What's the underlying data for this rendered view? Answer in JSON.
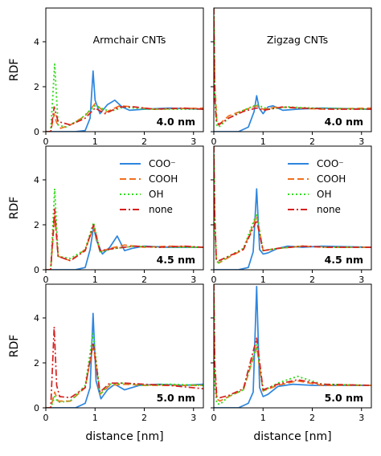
{
  "series_styles": [
    {
      "name": "COO⁻",
      "color": "#2e86de",
      "dash": "",
      "width": 1.7
    },
    {
      "name": "COOH",
      "color": "#f0701d",
      "dash": "8,4",
      "width": 1.7
    },
    {
      "name": "OH",
      "color": "#33dd1a",
      "dash": "2,3",
      "width": 1.9
    },
    {
      "name": "none",
      "color": "#d62020",
      "dash": "8,3,2,3",
      "width": 1.7
    }
  ],
  "chart_data": [
    {
      "type": "line",
      "row": 0,
      "col": 0,
      "title": "Armchair CNTs",
      "panel_label": "4.0 nm",
      "xlabel": "",
      "ylabel": "RDF",
      "xlim": [
        0,
        3.2
      ],
      "ylim": [
        0,
        5.5
      ],
      "xticks": [
        "0",
        "1",
        "2",
        "3"
      ],
      "yticks": [
        "0",
        "2",
        "4"
      ],
      "legend": false,
      "series": [
        {
          "name": "COO⁻",
          "x": [
            0,
            0.6,
            0.8,
            0.9,
            0.96,
            1.0,
            1.1,
            1.25,
            1.4,
            1.55,
            1.7,
            2.0,
            2.5,
            3.2
          ],
          "y": [
            0,
            0,
            0.05,
            0.6,
            2.7,
            1.4,
            0.8,
            1.2,
            1.4,
            1.1,
            0.95,
            1.0,
            1.05,
            1.0
          ]
        },
        {
          "name": "COOH",
          "x": [
            0,
            0.1,
            0.17,
            0.22,
            0.3,
            0.5,
            0.8,
            1.0,
            1.2,
            1.5,
            1.8,
            2.2,
            3.2
          ],
          "y": [
            0,
            0,
            0.8,
            0.4,
            0.15,
            0.3,
            0.7,
            1.25,
            0.85,
            1.15,
            1.1,
            1.0,
            1.05
          ]
        },
        {
          "name": "OH",
          "x": [
            0,
            0.1,
            0.18,
            0.25,
            0.4,
            0.7,
            1.0,
            1.3,
            1.6,
            2.0,
            3.2
          ],
          "y": [
            0,
            0,
            3.0,
            0.3,
            0.2,
            0.55,
            1.15,
            0.9,
            1.1,
            1.0,
            1.0
          ]
        },
        {
          "name": "none",
          "x": [
            0,
            0.1,
            0.17,
            0.25,
            0.5,
            0.8,
            1.0,
            1.2,
            1.5,
            1.8,
            2.2,
            2.8,
            3.2
          ],
          "y": [
            0,
            0,
            1.1,
            0.45,
            0.3,
            0.6,
            1.05,
            0.8,
            1.1,
            1.1,
            1.0,
            1.05,
            1.0
          ]
        }
      ]
    },
    {
      "type": "line",
      "row": 0,
      "col": 1,
      "title": "Zigzag CNTs",
      "panel_label": "4.0 nm",
      "xlabel": "",
      "ylabel": "",
      "xlim": [
        0,
        3.2
      ],
      "ylim": [
        0,
        5.5
      ],
      "xticks": [
        "0",
        "1",
        "2",
        "3"
      ],
      "yticks": [
        "0",
        "2",
        "4"
      ],
      "legend": false,
      "series": [
        {
          "name": "COO⁻",
          "x": [
            0,
            0.5,
            0.7,
            0.82,
            0.87,
            0.92,
            1.0,
            1.1,
            1.2,
            1.4,
            1.7,
            2.2,
            3.2
          ],
          "y": [
            0,
            0,
            0.2,
            0.9,
            1.6,
            1.05,
            0.8,
            1.1,
            1.15,
            0.95,
            1.0,
            1.05,
            1.0
          ]
        },
        {
          "name": "COOH",
          "x": [
            0,
            0.02,
            0.06,
            0.12,
            0.3,
            0.6,
            0.87,
            1.0,
            1.3,
            1.7,
            2.2,
            3.2
          ],
          "y": [
            5.5,
            2.2,
            0.5,
            0.35,
            0.7,
            0.95,
            1.15,
            1.0,
            1.1,
            1.05,
            1.0,
            1.05
          ]
        },
        {
          "name": "OH",
          "x": [
            0,
            0.02,
            0.06,
            0.1,
            0.3,
            0.6,
            0.87,
            1.1,
            1.5,
            2.0,
            3.2
          ],
          "y": [
            5.5,
            1.8,
            0.3,
            0.2,
            0.6,
            0.95,
            1.2,
            1.0,
            1.1,
            1.05,
            1.0
          ]
        },
        {
          "name": "none",
          "x": [
            0,
            0.02,
            0.05,
            0.1,
            0.3,
            0.6,
            0.87,
            1.0,
            1.4,
            1.8,
            2.4,
            3.2
          ],
          "y": [
            5.5,
            1.5,
            0.5,
            0.3,
            0.6,
            0.9,
            1.05,
            0.95,
            1.1,
            1.05,
            1.0,
            1.0
          ]
        }
      ]
    },
    {
      "type": "line",
      "row": 1,
      "col": 0,
      "title": "",
      "panel_label": "4.5 nm",
      "xlabel": "",
      "ylabel": "RDF",
      "xlim": [
        0,
        3.2
      ],
      "ylim": [
        0,
        5.5
      ],
      "xticks": [
        "0",
        "1",
        "2",
        "3"
      ],
      "yticks": [
        "0",
        "2",
        "4"
      ],
      "legend": true,
      "series": [
        {
          "name": "COO⁻",
          "x": [
            0,
            0.6,
            0.8,
            0.9,
            0.97,
            1.03,
            1.15,
            1.3,
            1.45,
            1.6,
            1.75,
            2.0,
            2.5,
            3.2
          ],
          "y": [
            0,
            0,
            0.1,
            0.9,
            1.9,
            1.3,
            0.7,
            1.0,
            1.5,
            0.85,
            0.95,
            1.05,
            1.0,
            1.0
          ]
        },
        {
          "name": "COOH",
          "x": [
            0,
            0.1,
            0.18,
            0.25,
            0.5,
            0.8,
            0.97,
            1.1,
            1.3,
            1.6,
            2.0,
            2.5,
            3.2
          ],
          "y": [
            0,
            0,
            2.4,
            0.6,
            0.4,
            0.9,
            1.9,
            0.8,
            0.95,
            1.1,
            1.0,
            1.05,
            1.0
          ]
        },
        {
          "name": "OH",
          "x": [
            0,
            0.1,
            0.18,
            0.25,
            0.5,
            0.8,
            0.97,
            1.1,
            1.4,
            1.8,
            2.3,
            3.2
          ],
          "y": [
            0,
            0,
            3.6,
            0.6,
            0.5,
            0.9,
            2.1,
            0.8,
            0.95,
            1.05,
            1.0,
            1.0
          ]
        },
        {
          "name": "none",
          "x": [
            0,
            0.1,
            0.18,
            0.25,
            0.5,
            0.8,
            0.97,
            1.1,
            1.4,
            1.8,
            2.3,
            2.8,
            3.2
          ],
          "y": [
            0,
            0,
            2.7,
            0.6,
            0.4,
            0.85,
            2.0,
            0.85,
            0.95,
            1.05,
            1.0,
            1.05,
            1.0
          ]
        }
      ]
    },
    {
      "type": "line",
      "row": 1,
      "col": 1,
      "title": "",
      "panel_label": "4.5 nm",
      "xlabel": "",
      "ylabel": "",
      "xlim": [
        0,
        3.2
      ],
      "ylim": [
        0,
        5.5
      ],
      "xticks": [
        "0",
        "1",
        "2",
        "3"
      ],
      "yticks": [
        "0",
        "2",
        "4"
      ],
      "legend": true,
      "series": [
        {
          "name": "COO⁻",
          "x": [
            0,
            0.5,
            0.7,
            0.8,
            0.87,
            0.93,
            1.0,
            1.1,
            1.3,
            1.5,
            1.8,
            2.2,
            3.2
          ],
          "y": [
            0,
            0,
            0.1,
            0.8,
            3.6,
            0.9,
            0.7,
            0.75,
            0.95,
            1.05,
            1.0,
            1.05,
            1.0
          ]
        },
        {
          "name": "COOH",
          "x": [
            0,
            0.02,
            0.05,
            0.1,
            0.3,
            0.6,
            0.87,
            1.0,
            1.3,
            1.8,
            2.3,
            3.2
          ],
          "y": [
            5.5,
            2.0,
            0.4,
            0.3,
            0.55,
            0.9,
            2.4,
            0.85,
            0.95,
            1.05,
            1.0,
            1.0
          ]
        },
        {
          "name": "OH",
          "x": [
            0,
            0.02,
            0.05,
            0.1,
            0.3,
            0.6,
            0.87,
            1.0,
            1.3,
            1.8,
            2.3,
            3.2
          ],
          "y": [
            5.5,
            2.0,
            0.4,
            0.3,
            0.6,
            0.95,
            2.5,
            0.85,
            0.95,
            1.05,
            1.0,
            1.0
          ]
        },
        {
          "name": "none",
          "x": [
            0,
            0.02,
            0.05,
            0.1,
            0.3,
            0.6,
            0.87,
            1.0,
            1.3,
            1.8,
            2.3,
            3.2
          ],
          "y": [
            5.5,
            2.5,
            0.5,
            0.4,
            0.6,
            0.9,
            2.2,
            0.85,
            0.95,
            1.05,
            1.0,
            1.0
          ]
        }
      ]
    },
    {
      "type": "line",
      "row": 2,
      "col": 0,
      "title": "",
      "panel_label": "5.0 nm",
      "xlabel": "distance [nm]",
      "ylabel": "RDF",
      "xlim": [
        0,
        3.2
      ],
      "ylim": [
        0,
        5.5
      ],
      "xticks": [
        "0",
        "1",
        "2",
        "3"
      ],
      "yticks": [
        "0",
        "2",
        "4"
      ],
      "legend": false,
      "series": [
        {
          "name": "COO⁻",
          "x": [
            0,
            0.6,
            0.8,
            0.9,
            0.96,
            1.02,
            1.12,
            1.25,
            1.4,
            1.6,
            1.9,
            2.3,
            2.8,
            3.2
          ],
          "y": [
            0,
            0,
            0.2,
            0.9,
            4.2,
            1.2,
            0.4,
            0.8,
            1.05,
            0.8,
            1.0,
            1.05,
            1.0,
            1.05
          ]
        },
        {
          "name": "COOH",
          "x": [
            0,
            0.1,
            0.18,
            0.25,
            0.5,
            0.8,
            0.96,
            1.1,
            1.3,
            1.6,
            2.0,
            2.5,
            3.2
          ],
          "y": [
            0,
            0,
            0.7,
            0.3,
            0.3,
            0.9,
            2.8,
            0.6,
            1.0,
            1.05,
            1.0,
            1.0,
            1.0
          ]
        },
        {
          "name": "OH",
          "x": [
            0,
            0.1,
            0.18,
            0.25,
            0.5,
            0.8,
            0.96,
            1.1,
            1.3,
            1.6,
            2.0,
            2.5,
            3.2
          ],
          "y": [
            0,
            0,
            0.5,
            0.25,
            0.3,
            1.0,
            3.3,
            0.6,
            1.05,
            1.1,
            1.0,
            1.05,
            1.0
          ]
        },
        {
          "name": "none",
          "x": [
            0,
            0.1,
            0.17,
            0.22,
            0.28,
            0.5,
            0.8,
            0.96,
            1.1,
            1.3,
            1.6,
            2.0,
            2.5,
            3.2
          ],
          "y": [
            0,
            0,
            3.6,
            1.0,
            0.5,
            0.45,
            0.9,
            2.9,
            0.7,
            1.1,
            1.1,
            1.05,
            1.0,
            0.85
          ]
        }
      ]
    },
    {
      "type": "line",
      "row": 2,
      "col": 1,
      "title": "",
      "panel_label": "5.0 nm",
      "xlabel": "distance [nm]",
      "ylabel": "",
      "xlim": [
        0,
        3.2
      ],
      "ylim": [
        0,
        5.5
      ],
      "xticks": [
        "0",
        "1",
        "2",
        "3"
      ],
      "yticks": [
        "0",
        "2",
        "4"
      ],
      "legend": false,
      "series": [
        {
          "name": "COO⁻",
          "x": [
            0,
            0.5,
            0.7,
            0.8,
            0.87,
            0.93,
            1.0,
            1.1,
            1.3,
            1.6,
            2.0,
            2.5,
            3.2
          ],
          "y": [
            0,
            0,
            0.2,
            0.7,
            5.4,
            0.9,
            0.5,
            0.6,
            0.95,
            1.05,
            1.0,
            1.0,
            1.0
          ]
        },
        {
          "name": "COOH",
          "x": [
            0,
            0.02,
            0.06,
            0.12,
            0.3,
            0.6,
            0.87,
            1.0,
            1.3,
            1.7,
            2.2,
            3.2
          ],
          "y": [
            5.5,
            1.5,
            0.4,
            0.3,
            0.5,
            0.8,
            2.7,
            0.75,
            1.0,
            1.2,
            1.0,
            1.0
          ]
        },
        {
          "name": "OH",
          "x": [
            0,
            0.02,
            0.06,
            0.12,
            0.3,
            0.6,
            0.87,
            1.0,
            1.3,
            1.7,
            2.2,
            3.2
          ],
          "y": [
            5.5,
            1.0,
            0.2,
            0.15,
            0.5,
            0.8,
            2.8,
            0.75,
            1.1,
            1.4,
            1.05,
            1.0
          ]
        },
        {
          "name": "none",
          "x": [
            0,
            0.02,
            0.06,
            0.12,
            0.3,
            0.6,
            0.87,
            1.0,
            1.3,
            1.7,
            2.2,
            3.2
          ],
          "y": [
            5.5,
            2.0,
            0.5,
            0.45,
            0.55,
            0.85,
            3.1,
            0.8,
            1.05,
            1.25,
            1.05,
            1.0
          ]
        }
      ]
    }
  ]
}
